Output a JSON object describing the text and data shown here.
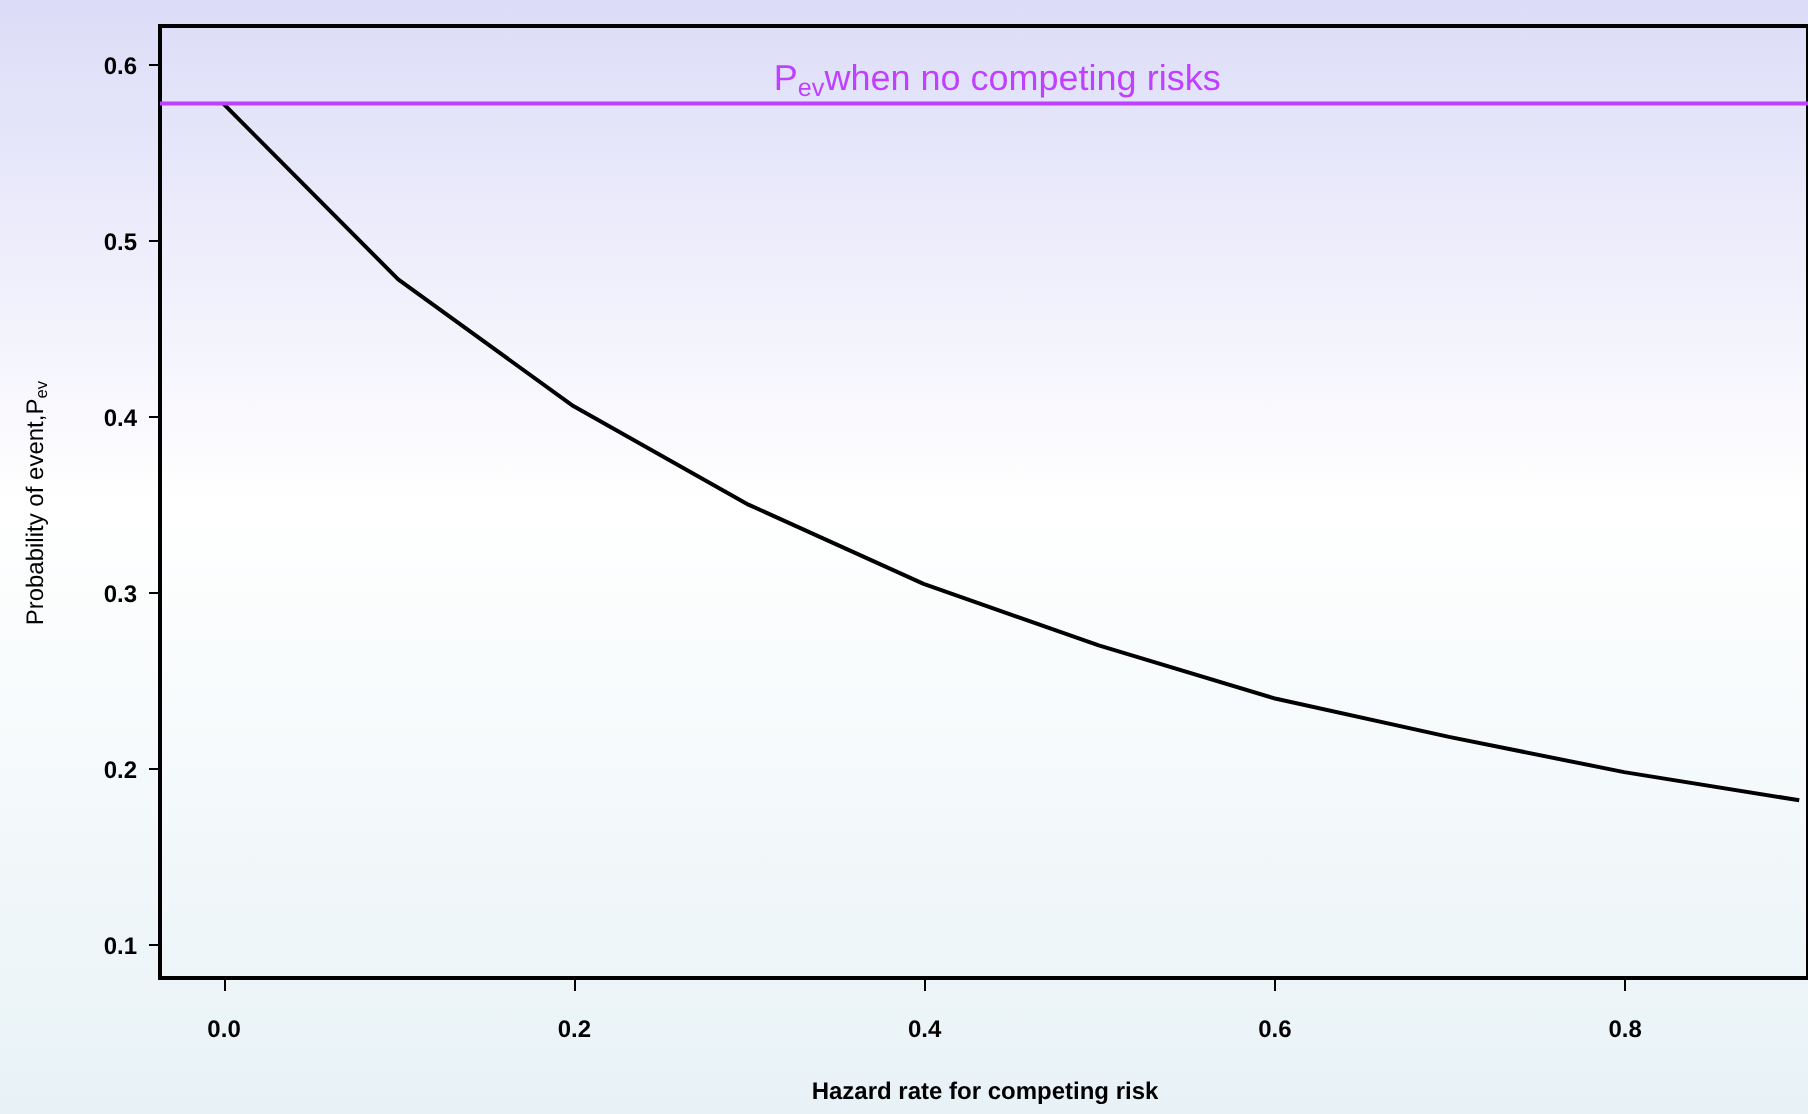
{
  "chart_data": {
    "type": "line",
    "xlabel": "Hazard rate for competing risk",
    "ylabel": "Probability of event,P$_{ev}$",
    "x": [
      0,
      0.1,
      0.2,
      0.3,
      0.4,
      0.5,
      0.6,
      0.7,
      0.8,
      0.9
    ],
    "series": [
      {
        "color": "#000000",
        "values": [
          0.578,
          0.478,
          0.406,
          0.35,
          0.305,
          0.27,
          0.24,
          0.218,
          0.198,
          0.182
        ]
      }
    ],
    "xlim": [
      -0.036,
      0.905
    ],
    "ylim": [
      0.081,
      0.622
    ],
    "xticks": [
      {
        "value": 0,
        "label": "0.0"
      },
      {
        "value": 0.2,
        "label": "0.2"
      },
      {
        "value": 0.4,
        "label": "0.4"
      },
      {
        "value": 0.6,
        "label": "0.6"
      },
      {
        "value": 0.8,
        "label": "0.8"
      }
    ],
    "yticks": [
      0.1,
      0.2,
      0.3,
      0.4,
      0.5,
      0.6
    ],
    "ref_lines": [
      {
        "axis": "y",
        "value": 0.578,
        "label": "P$_{ev}$when no competing risks",
        "color": "#bf40ff"
      }
    ],
    "grid": false,
    "marker": "none",
    "line_style": "solid"
  }
}
